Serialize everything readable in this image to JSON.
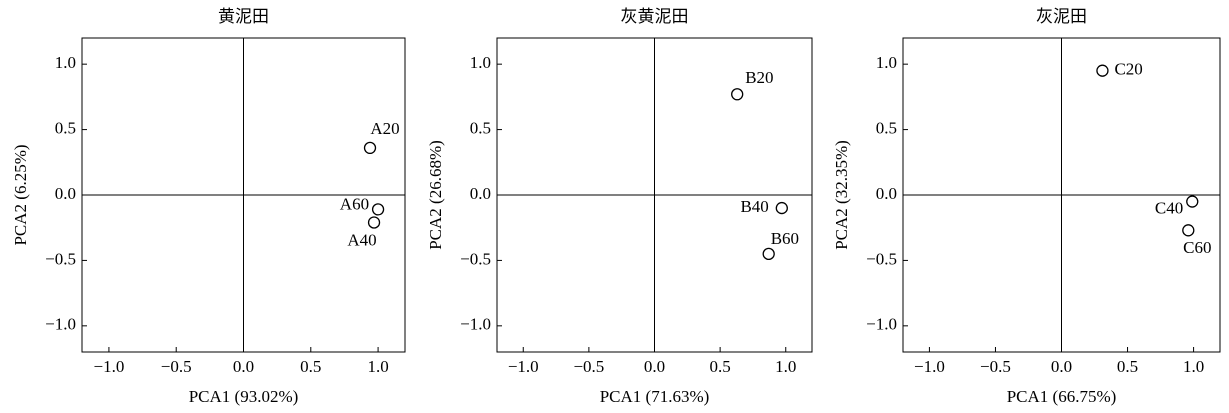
{
  "chart_data": [
    {
      "type": "scatter",
      "title": "黄泥田",
      "xlabel": "PCA1 (93.02%)",
      "ylabel": "PCA2 (6.25%)",
      "x": [
        0.94,
        1.0,
        0.97
      ],
      "y": [
        0.36,
        -0.11,
        -0.21
      ],
      "labels": [
        "A20",
        "A60",
        "A40"
      ],
      "xlim": [
        -1.2,
        1.2
      ],
      "ylim": [
        -1.2,
        1.2
      ],
      "xticks": [
        {
          "value": -1,
          "label": "−1.0"
        },
        {
          "value": -0.5,
          "label": "−0.5"
        },
        {
          "value": 0,
          "label": "0.0"
        },
        0.5,
        {
          "value": 1,
          "label": "1.0"
        }
      ],
      "yticks": [
        {
          "value": -1,
          "label": "−1.0"
        },
        {
          "value": -0.5,
          "label": "−0.5"
        },
        {
          "value": 0,
          "label": "0.0"
        },
        0.5,
        {
          "value": 1,
          "label": "1.0"
        }
      ],
      "color": "#000000"
    },
    {
      "type": "scatter",
      "title": "灰黄泥田",
      "xlabel": "PCA1 (71.63%)",
      "ylabel": "PCA2 (26.68%)",
      "x": [
        0.63,
        0.97,
        0.87
      ],
      "y": [
        0.77,
        -0.1,
        -0.45
      ],
      "labels": [
        "B20",
        "B40",
        "B60"
      ],
      "xlim": [
        -1.2,
        1.2
      ],
      "ylim": [
        -1.2,
        1.2
      ],
      "xticks": [
        {
          "value": -1,
          "label": "−1.0"
        },
        {
          "value": -0.5,
          "label": "−0.5"
        },
        {
          "value": 0,
          "label": "0.0"
        },
        0.5,
        {
          "value": 1,
          "label": "1.0"
        }
      ],
      "yticks": [
        {
          "value": -1,
          "label": "−1.0"
        },
        {
          "value": -0.5,
          "label": "−0.5"
        },
        {
          "value": 0,
          "label": "0.0"
        },
        0.5,
        {
          "value": 1,
          "label": "1.0"
        }
      ],
      "color": "#000000"
    },
    {
      "type": "scatter",
      "title": "灰泥田",
      "xlabel": "PCA1 (66.75%)",
      "ylabel": "PCA2 (32.35%)",
      "x": [
        0.31,
        0.99,
        0.96
      ],
      "y": [
        0.95,
        -0.05,
        -0.27
      ],
      "labels": [
        "C20",
        "C40",
        "C60"
      ],
      "xlim": [
        -1.2,
        1.2
      ],
      "ylim": [
        -1.2,
        1.2
      ],
      "xticks": [
        {
          "value": -1,
          "label": "−1.0"
        },
        {
          "value": -0.5,
          "label": "−0.5"
        },
        {
          "value": 0,
          "label": "0.0"
        },
        0.5,
        {
          "value": 1,
          "label": "1.0"
        }
      ],
      "yticks": [
        {
          "value": -1,
          "label": "−1.0"
        },
        {
          "value": -0.5,
          "label": "−0.5"
        },
        {
          "value": 0,
          "label": "0.0"
        },
        0.5,
        {
          "value": 1,
          "label": "1.0"
        }
      ],
      "color": "#000000"
    }
  ]
}
